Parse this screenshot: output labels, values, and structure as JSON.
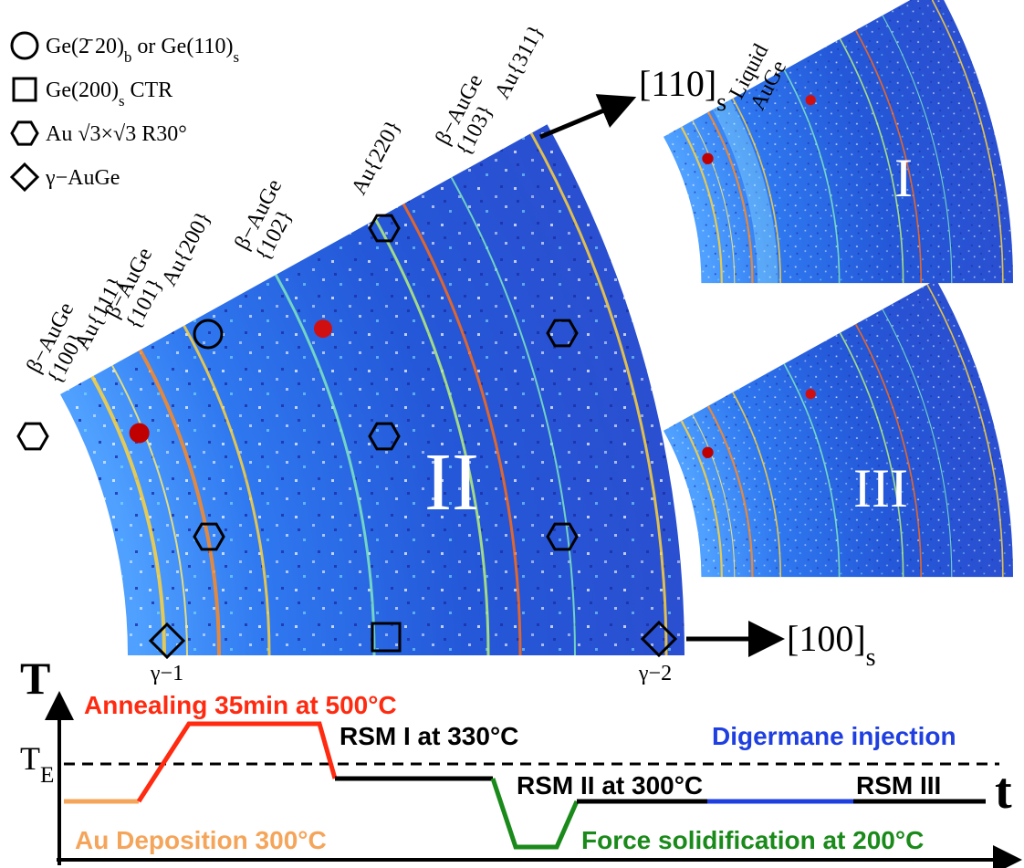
{
  "legend": [
    {
      "symbol": "circle",
      "parts": [
        {
          "text": "Ge(2̄ 20)"
        },
        {
          "sub": "b"
        },
        {
          "text": " or Ge(110)"
        },
        {
          "sub": "s"
        }
      ]
    },
    {
      "symbol": "square",
      "parts": [
        {
          "text": "Ge(200)"
        },
        {
          "sub": "s"
        },
        {
          "text": " CTR"
        }
      ]
    },
    {
      "symbol": "hexagon",
      "parts": [
        {
          "text": "Au √3×√3 R30°"
        }
      ]
    },
    {
      "symbol": "diamond",
      "parts": [
        {
          "text": "γ−AuGe"
        }
      ]
    }
  ],
  "ring_labels": [
    {
      "lines": [
        "β−AuGe",
        "{100}"
      ]
    },
    {
      "lines": [
        "Au{111}"
      ]
    },
    {
      "lines": [
        "β−AuGe",
        "{101}"
      ]
    },
    {
      "lines": [
        "Au{200}"
      ]
    },
    {
      "lines": [
        "β−AuGe",
        "{102}"
      ]
    },
    {
      "lines": [
        "Au{220}"
      ]
    },
    {
      "lines": [
        "β−AuGe",
        "{103}"
      ]
    },
    {
      "lines": [
        "Au{311}"
      ]
    },
    {
      "lines": [
        "Liquid",
        "AuGe"
      ]
    }
  ],
  "directions": [
    [
      {
        "text": "[110]"
      },
      {
        "sub": "s"
      }
    ],
    [
      {
        "text": "[100]"
      },
      {
        "sub": "s"
      }
    ]
  ],
  "panels": [
    "I",
    "II",
    "III"
  ],
  "gamma_labels": [
    "γ−1",
    "γ−2"
  ],
  "timeline": {
    "y_axis": "T",
    "x_axis": "t",
    "eutectic": [
      {
        "text": "T"
      },
      {
        "sub": "E"
      }
    ],
    "steps": [
      {
        "text": "Annealing 35min at 500°C",
        "color": "#ff2a10"
      },
      {
        "text": "RSM I at 330°C",
        "color": "#000000"
      },
      {
        "text": "Digermane injection",
        "color": "#1f3fe0"
      },
      {
        "text": "RSM II at 300°C",
        "color": "#000000"
      },
      {
        "text": "RSM  III",
        "color": "#000000"
      },
      {
        "text": "Au Deposition 300°C",
        "color": "#f5a55a"
      },
      {
        "text": "Force solidification at 200°C",
        "color": "#1a8a1a"
      }
    ]
  }
}
